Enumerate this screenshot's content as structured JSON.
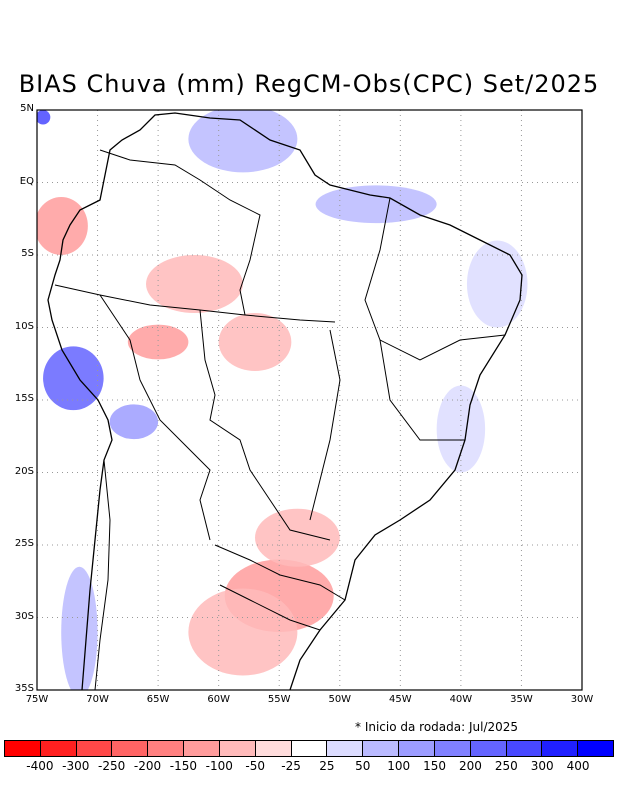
{
  "title": "BIAS Chuva (mm) RegCM-Obs(CPC) Set/2025",
  "lat_ticks": [
    "5N",
    "EQ",
    "5S",
    "10S",
    "15S",
    "20S",
    "25S",
    "30S",
    "35S"
  ],
  "lon_ticks": [
    "75W",
    "70W",
    "65W",
    "60W",
    "55W",
    "50W",
    "45W",
    "40W",
    "35W",
    "30W"
  ],
  "run_info": "* Inicio da rodada: Jul/2025",
  "colorbar": {
    "colors": [
      "#ff0000",
      "#ff2020",
      "#ff4848",
      "#ff6464",
      "#ff8080",
      "#ff9c9c",
      "#ffbaba",
      "#ffdcdc",
      "#ffffff",
      "#dcdcff",
      "#babaff",
      "#9c9cff",
      "#8080ff",
      "#6464ff",
      "#4848ff",
      "#2020ff",
      "#0000ff"
    ],
    "labels": [
      "-400",
      "-300",
      "-250",
      "-200",
      "-150",
      "-100",
      "-50",
      "-25",
      "25",
      "50",
      "100",
      "150",
      "200",
      "250",
      "300",
      "400"
    ]
  },
  "regions": [
    {
      "name": "deep-blue-northwest",
      "color": "#4848ff",
      "lon": -74.5,
      "lat": 4.5,
      "rlon": 0.6,
      "rlat": 0.5
    },
    {
      "name": "red-northwest-peru",
      "color": "#ff9c9c",
      "lon": -73,
      "lat": -3,
      "rlon": 2.2,
      "rlat": 2.0
    },
    {
      "name": "red-central-amazon",
      "color": "#ffbaba",
      "lon": -62,
      "lat": -7,
      "rlon": 4,
      "rlat": 2.0
    },
    {
      "name": "red-rondonia",
      "color": "#ffbaba",
      "lon": -57,
      "lat": -11,
      "rlon": 3,
      "rlat": 2.0
    },
    {
      "name": "red-acre",
      "color": "#ff9c9c",
      "lon": -65,
      "lat": -11,
      "rlon": 2.5,
      "rlat": 1.2
    },
    {
      "name": "blue-andes",
      "color": "#6464ff",
      "lon": -72,
      "lat": -13.5,
      "rlon": 2.5,
      "rlat": 2.2
    },
    {
      "name": "blue-andes-south",
      "color": "#9c9cff",
      "lon": -67,
      "lat": -16.5,
      "rlon": 2,
      "rlat": 1.2
    },
    {
      "name": "blue-guyana",
      "color": "#babaff",
      "lon": -58,
      "lat": 3,
      "rlon": 4.5,
      "rlat": 2.3
    },
    {
      "name": "blue-para-coast",
      "color": "#babaff",
      "lon": -47,
      "lat": -1.5,
      "rlon": 5,
      "rlat": 1.3
    },
    {
      "name": "blue-northeast",
      "color": "#dcdcff",
      "lon": -37,
      "lat": -7,
      "rlon": 2.5,
      "rlat": 3
    },
    {
      "name": "blue-east-coast",
      "color": "#dcdcff",
      "lon": -40,
      "lat": -17,
      "rlon": 2,
      "rlat": 3
    },
    {
      "name": "red-south-brazil",
      "color": "#ff9c9c",
      "lon": -55,
      "lat": -28.5,
      "rlon": 4.5,
      "rlat": 2.5
    },
    {
      "name": "red-parana",
      "color": "#ffbaba",
      "lon": -53.5,
      "lat": -24.5,
      "rlon": 3.5,
      "rlat": 2.0
    },
    {
      "name": "red-argentina",
      "color": "#ffbaba",
      "lon": -58,
      "lat": -31,
      "rlon": 4.5,
      "rlat": 3.0
    },
    {
      "name": "blue-chile",
      "color": "#babaff",
      "lon": -71.5,
      "lat": -31,
      "rlon": 1.5,
      "rlat": 4.5
    }
  ]
}
